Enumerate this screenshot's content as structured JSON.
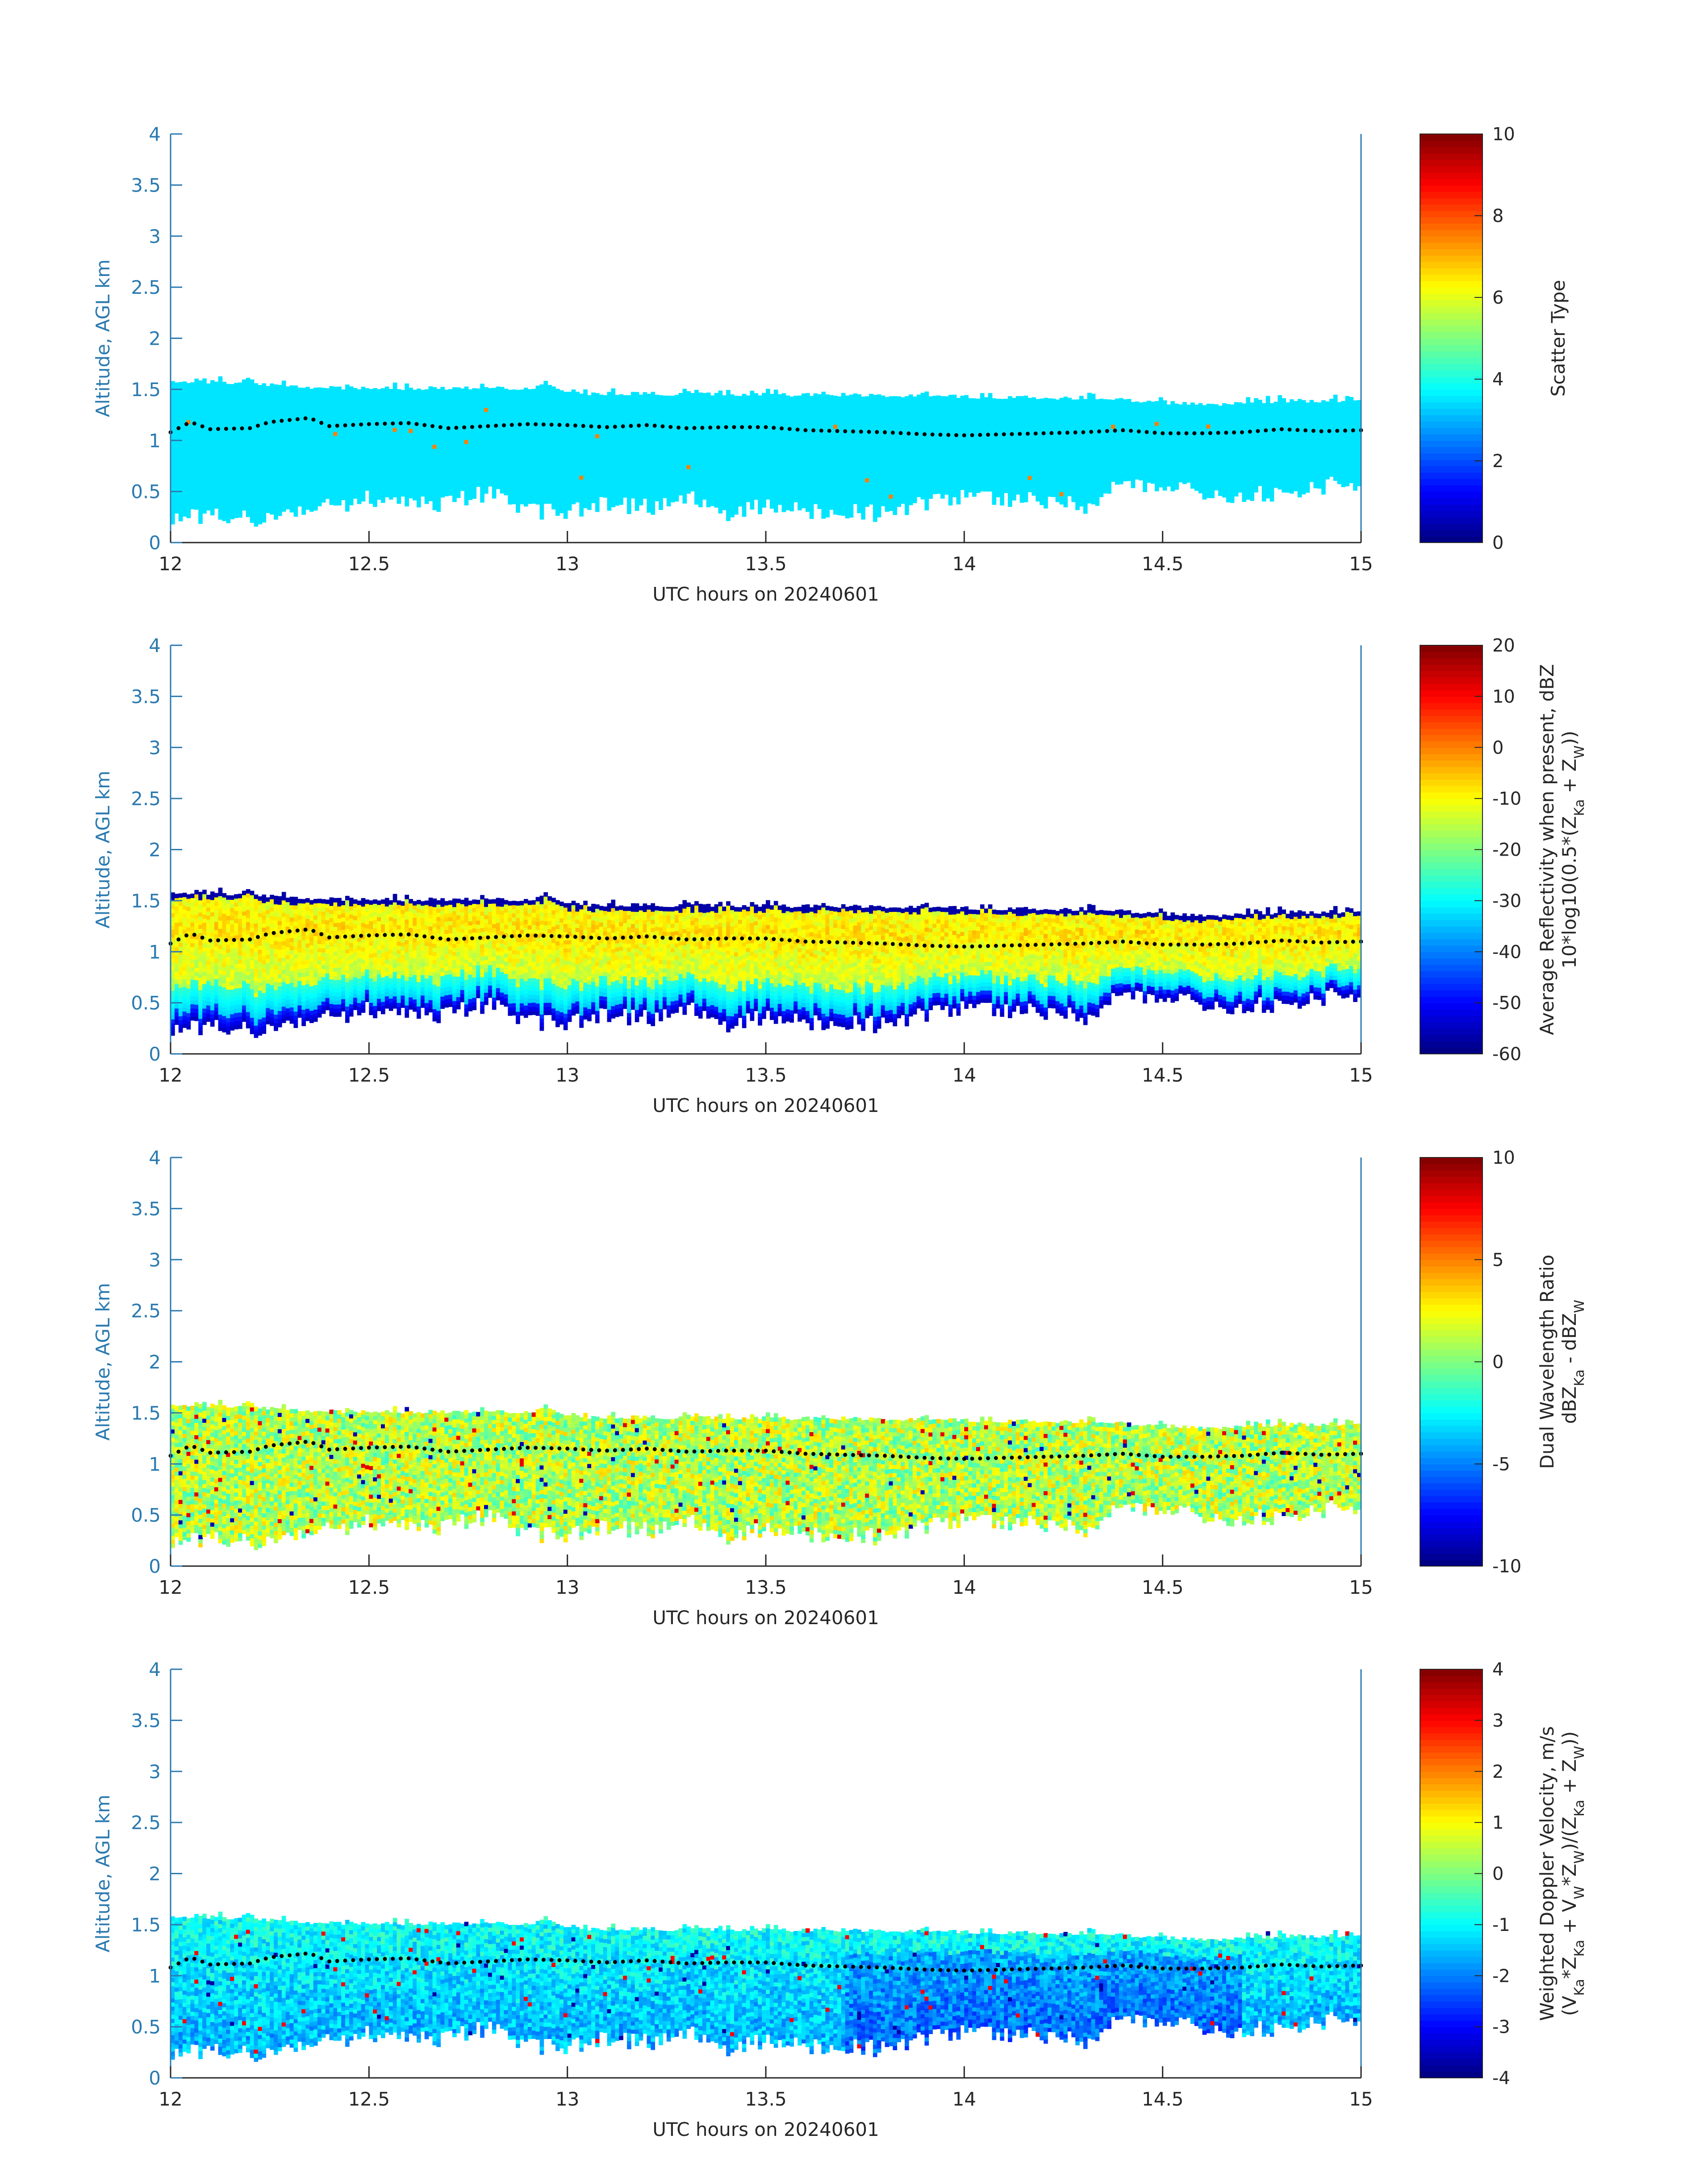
{
  "figure": {
    "colors": {
      "axis": "#2a7ab0",
      "text": "#262626",
      "cloud_base_dots": "#000000"
    }
  },
  "chart_data": [
    {
      "type": "heatmap",
      "xlabel": "UTC hours on 20240601",
      "ylabel": "Altitude, AGL km",
      "xlim": [
        12,
        15
      ],
      "ylim": [
        0,
        4
      ],
      "xticks": [
        12,
        12.5,
        13,
        13.5,
        14,
        14.5,
        15
      ],
      "yticks": [
        0,
        0.5,
        1,
        1.5,
        2,
        2.5,
        3,
        3.5,
        4
      ],
      "colorbar": {
        "label_lines": [
          "Scatter Type"
        ],
        "range": [
          0,
          10
        ],
        "ticks": [
          0,
          2,
          4,
          6,
          8,
          10
        ],
        "colormap": "jet"
      },
      "variable": "scatter_type"
    },
    {
      "type": "heatmap",
      "xlabel": "UTC hours on 20240601",
      "ylabel": "Altitude, AGL km",
      "xlim": [
        12,
        15
      ],
      "ylim": [
        0,
        4
      ],
      "xticks": [
        12,
        12.5,
        13,
        13.5,
        14,
        14.5,
        15
      ],
      "yticks": [
        0,
        0.5,
        1,
        1.5,
        2,
        2.5,
        3,
        3.5,
        4
      ],
      "colorbar": {
        "label_lines": [
          "Average Reflectivity when present, dBZ",
          "10*log10(0.5*(Z_Ka + Z_W))"
        ],
        "range": [
          -60,
          20
        ],
        "ticks": [
          -60,
          -50,
          -40,
          -30,
          -20,
          -10,
          0,
          10,
          20
        ],
        "colormap": "jet"
      },
      "variable": "reflectivity"
    },
    {
      "type": "heatmap",
      "xlabel": "UTC hours on 20240601",
      "ylabel": "Altitude, AGL km",
      "xlim": [
        12,
        15
      ],
      "ylim": [
        0,
        4
      ],
      "xticks": [
        12,
        12.5,
        13,
        13.5,
        14,
        14.5,
        15
      ],
      "yticks": [
        0,
        0.5,
        1,
        1.5,
        2,
        2.5,
        3,
        3.5,
        4
      ],
      "colorbar": {
        "label_lines": [
          "Dual Wavelength Ratio",
          "dBZ_Ka - dBZ_W"
        ],
        "range": [
          -10,
          10
        ],
        "ticks": [
          -10,
          -5,
          0,
          5,
          10
        ],
        "colormap": "jet"
      },
      "variable": "dwr"
    },
    {
      "type": "heatmap",
      "xlabel": "UTC hours on 20240601",
      "ylabel": "Altitude, AGL km",
      "xlim": [
        12,
        15
      ],
      "ylim": [
        0,
        4
      ],
      "xticks": [
        12,
        12.5,
        13,
        13.5,
        14,
        14.5,
        15
      ],
      "yticks": [
        0,
        0.5,
        1,
        1.5,
        2,
        2.5,
        3,
        3.5,
        4
      ],
      "colorbar": {
        "label_lines": [
          "Weighted Doppler Velocity, m/s",
          "(V_Ka*Z_Ka + V_W*Z_W)/(Z_Ka + Z_W))"
        ],
        "range": [
          -4,
          4
        ],
        "ticks": [
          -4,
          -3,
          -2,
          -1,
          0,
          1,
          2,
          3,
          4
        ],
        "colormap": "jet"
      },
      "variable": "velocity"
    }
  ],
  "cloud_top_km": {
    "x": [
      12,
      12.2,
      12.25,
      12.5,
      12.9,
      12.95,
      13,
      13.5,
      13.8,
      14,
      14.2,
      14.4,
      14.6,
      14.8,
      15
    ],
    "y": [
      1.55,
      1.55,
      1.51,
      1.49,
      1.49,
      1.53,
      1.44,
      1.43,
      1.42,
      1.41,
      1.4,
      1.38,
      1.33,
      1.37,
      1.37
    ]
  },
  "cloud_base_km": {
    "x": [
      12,
      12.1,
      12.2,
      12.3,
      12.4,
      12.5,
      12.6,
      12.7,
      12.8,
      12.9,
      13,
      13.1,
      13.2,
      13.3,
      13.4,
      13.5,
      13.6,
      13.7,
      13.8,
      13.9,
      14,
      14.1,
      14.2,
      14.3,
      14.4,
      14.5,
      14.6,
      14.7,
      14.8,
      14.9,
      15
    ],
    "y": [
      0.2,
      0.3,
      0.22,
      0.25,
      0.35,
      0.45,
      0.35,
      0.4,
      0.5,
      0.3,
      0.3,
      0.4,
      0.35,
      0.45,
      0.3,
      0.38,
      0.3,
      0.3,
      0.28,
      0.38,
      0.45,
      0.42,
      0.4,
      0.35,
      0.6,
      0.55,
      0.5,
      0.45,
      0.5,
      0.55,
      0.6
    ]
  },
  "ceilometer_dots_km": {
    "x": [
      12,
      12.05,
      12.1,
      12.2,
      12.25,
      12.3,
      12.35,
      12.4,
      12.5,
      12.6,
      12.7,
      12.8,
      12.9,
      13,
      13.1,
      13.2,
      13.3,
      13.4,
      13.5,
      13.6,
      13.7,
      13.8,
      13.9,
      14,
      14.1,
      14.2,
      14.3,
      14.4,
      14.5,
      14.6,
      14.7,
      14.8,
      14.9,
      15
    ],
    "y": [
      1.08,
      1.18,
      1.11,
      1.12,
      1.18,
      1.2,
      1.22,
      1.14,
      1.16,
      1.17,
      1.12,
      1.14,
      1.16,
      1.15,
      1.13,
      1.15,
      1.12,
      1.13,
      1.13,
      1.1,
      1.09,
      1.08,
      1.06,
      1.05,
      1.06,
      1.07,
      1.08,
      1.1,
      1.07,
      1.07,
      1.08,
      1.11,
      1.09,
      1.1
    ]
  }
}
